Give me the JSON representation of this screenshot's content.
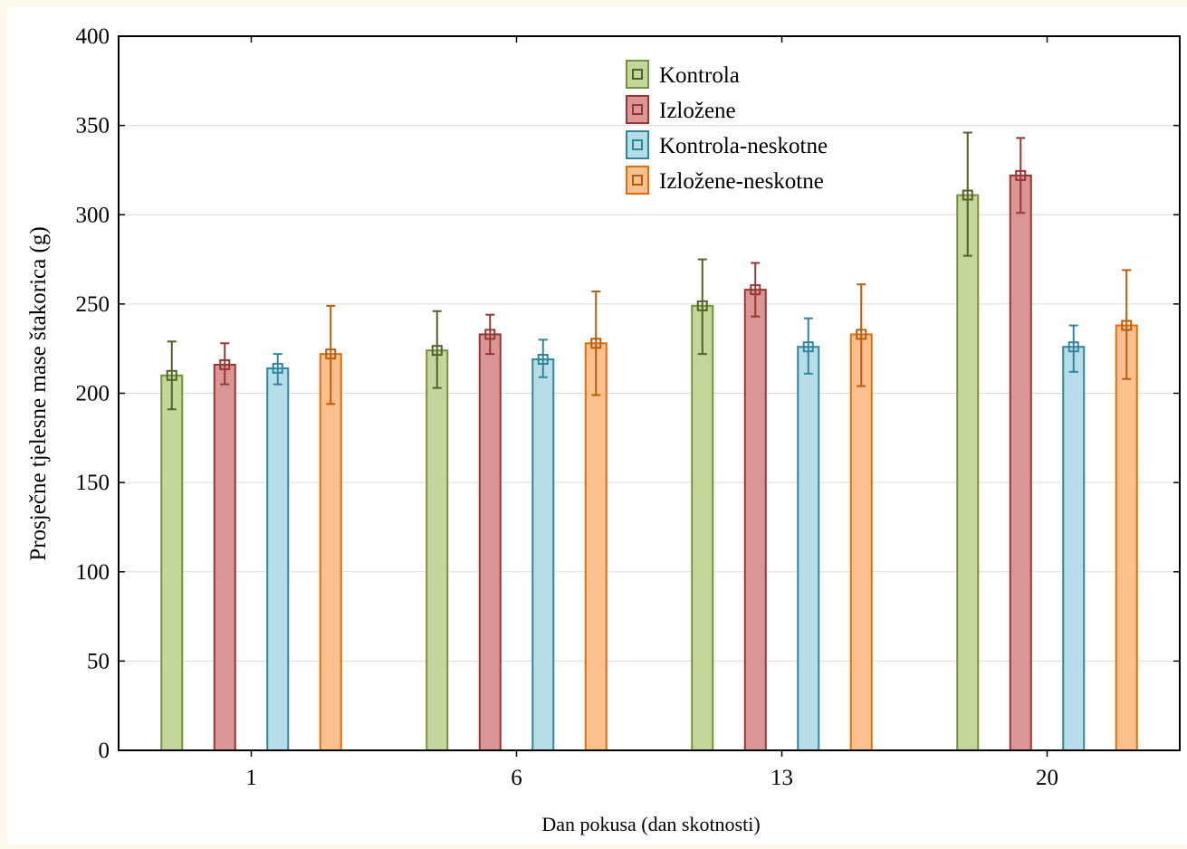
{
  "chart_data": {
    "type": "bar",
    "title": "",
    "xlabel": "Dan pokusa (dan skotnosti)",
    "ylabel": "Prosječne tjelesne mase štakorica (g)",
    "categories": [
      "1",
      "6",
      "13",
      "20"
    ],
    "ylim": [
      0,
      400
    ],
    "yticks": [
      0,
      50,
      100,
      150,
      200,
      250,
      300,
      350,
      400
    ],
    "grid": true,
    "legend_position": "top-center",
    "error_bars": true,
    "series": [
      {
        "name": "Kontrola",
        "color": "#c3d69b",
        "edge_color": "#76923c",
        "err_color": "#4f6228",
        "values": [
          210,
          224,
          249,
          311
        ],
        "err_low": [
          191,
          203,
          222,
          277
        ],
        "err_high": [
          229,
          246,
          275,
          346
        ]
      },
      {
        "name": "Izložene",
        "color": "#d99694",
        "edge_color": "#953735",
        "err_color": "#953735",
        "values": [
          216,
          233,
          258,
          322
        ],
        "err_low": [
          205,
          222,
          243,
          301
        ],
        "err_high": [
          228,
          244,
          273,
          343
        ]
      },
      {
        "name": "Kontrola-neskotne",
        "color": "#b7dee8",
        "edge_color": "#31859c",
        "err_color": "#31859c",
        "values": [
          214,
          219,
          226,
          226
        ],
        "err_low": [
          205,
          209,
          211,
          212
        ],
        "err_high": [
          222,
          230,
          242,
          238
        ]
      },
      {
        "name": "Izložene-neskotne",
        "color": "#fac090",
        "edge_color": "#e46c0a",
        "err_color": "#b85c0d",
        "values": [
          222,
          228,
          233,
          238
        ],
        "err_low": [
          194,
          199,
          204,
          208
        ],
        "err_high": [
          249,
          257,
          261,
          269
        ]
      }
    ]
  }
}
